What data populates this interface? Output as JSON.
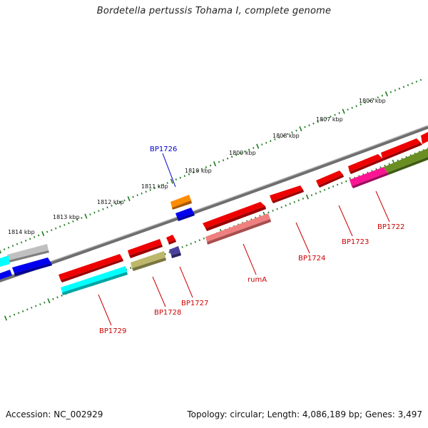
{
  "title": "Bordetella pertussis Tohama I, complete genome",
  "footer": {
    "accession": "Accession: NC_002929",
    "summary": "Topology: circular; Length: 4,086,189 bp; Genes: 3,497"
  },
  "colors": {
    "backbone": "#7a7a7a",
    "tick": "#1f7a1f",
    "label_red": "#cc0000",
    "label_blue": "#0000cc"
  },
  "kbp_labels": [
    "1806 kbp",
    "1807 kbp",
    "1808 kbp",
    "1809 kbp",
    "1810 kbp",
    "1811 kbp",
    "1812 kbp",
    "1813 kbp",
    "1814 kbp"
  ],
  "gene_labels": [
    {
      "name": "BP1726",
      "color": "#0000cc"
    },
    {
      "name": "BP1722",
      "color": "#cc0000"
    },
    {
      "name": "BP1723",
      "color": "#cc0000"
    },
    {
      "name": "BP1724",
      "color": "#cc0000"
    },
    {
      "name": "rumA",
      "color": "#cc0000"
    },
    {
      "name": "BP1727",
      "color": "#cc0000"
    },
    {
      "name": "BP1728",
      "color": "#cc0000"
    },
    {
      "name": "BP1729",
      "color": "#cc0000"
    }
  ]
}
